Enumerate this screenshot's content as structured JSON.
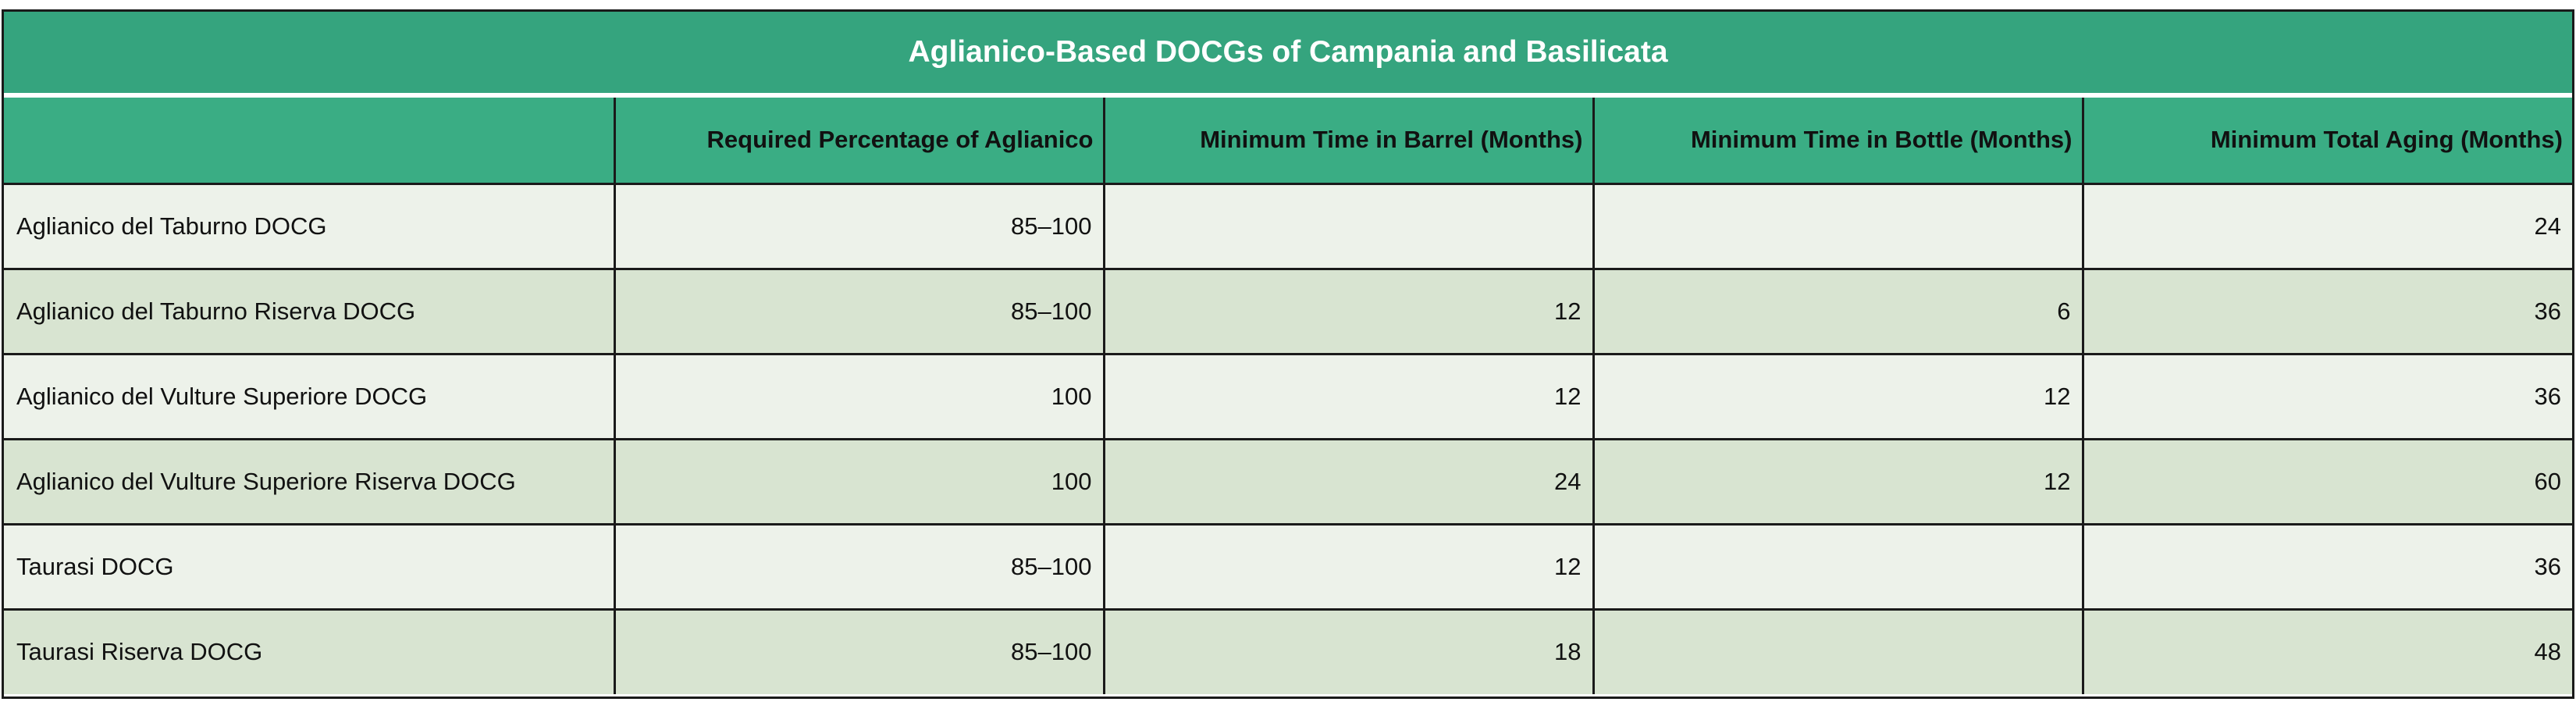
{
  "title": "Aglianico-Based DOCGs of Campania and Basilicata",
  "columns": [
    "",
    "Required Percentage of Aglianico",
    "Minimum Time in Barrel (Months)",
    "Minimum Time in Bottle (Months)",
    "Minimum Total Aging (Months)"
  ],
  "rows": [
    [
      "Aglianico del Taburno DOCG",
      "85–100",
      "",
      "",
      "24"
    ],
    [
      "Aglianico del Taburno Riserva DOCG",
      "85–100",
      "12",
      "6",
      "36"
    ],
    [
      "Aglianico del Vulture Superiore DOCG",
      "100",
      "12",
      "12",
      "36"
    ],
    [
      "Aglianico del Vulture Superiore Riserva DOCG",
      "100",
      "24",
      "12",
      "60"
    ],
    [
      "Taurasi DOCG",
      "85–100",
      "12",
      "",
      "36"
    ],
    [
      "Taurasi Riserva DOCG",
      "85–100",
      "18",
      "",
      "48"
    ]
  ],
  "colors": {
    "title_background": "#35a47e",
    "header_background": "#3aad84",
    "row_light": "#edf2ea",
    "row_dark": "#d8e4d1"
  }
}
